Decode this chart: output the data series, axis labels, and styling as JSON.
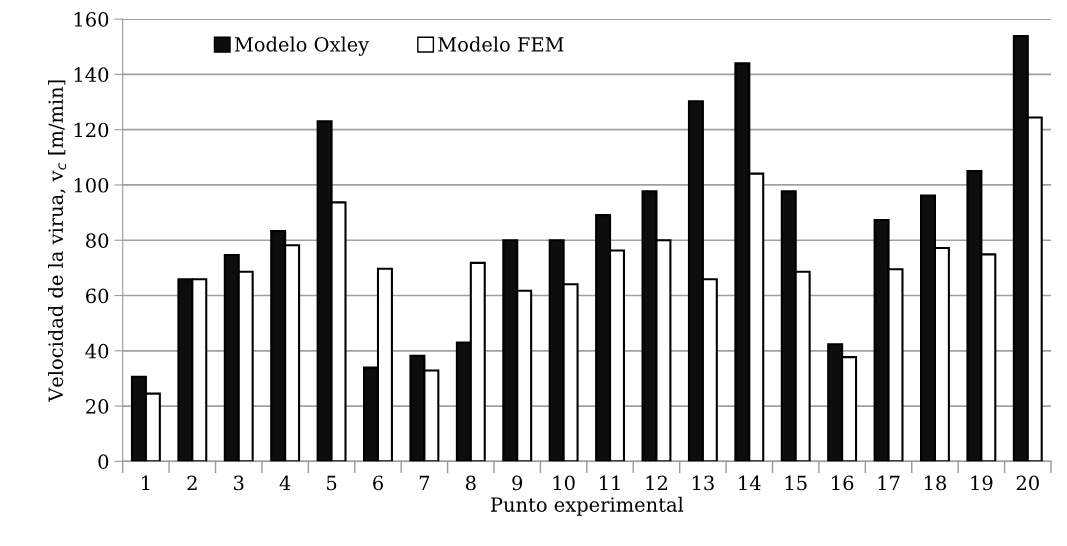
{
  "chart_data": {
    "type": "bar",
    "xlabel": "Punto experimental",
    "ylabel": "Velocidad de la virua, v$_{c}$ [m/min]",
    "categories": [
      "1",
      "2",
      "3",
      "4",
      "5",
      "6",
      "7",
      "8",
      "9",
      "10",
      "11",
      "12",
      "13",
      "14",
      "15",
      "16",
      "17",
      "18",
      "19",
      "20"
    ],
    "series": [
      {
        "name": "Modelo Oxley",
        "color": "#0d0d0d",
        "values": [
          30.6,
          65.9,
          74.6,
          83.3,
          123,
          33.9,
          38.2,
          43,
          80,
          80,
          89.1,
          97.7,
          130.3,
          144,
          97.7,
          42.4,
          87.3,
          96.2,
          105,
          153.9
        ]
      },
      {
        "name": "Modelo FEM",
        "color": "#ffffff",
        "values": [
          24.5,
          65.9,
          68.6,
          78.2,
          93.7,
          69.7,
          32.9,
          71.8,
          61.7,
          64.1,
          76.3,
          80,
          65.9,
          104.1,
          68.6,
          37.7,
          69.5,
          77.2,
          74.9,
          124.4
        ]
      }
    ],
    "ylim": [
      0,
      160
    ],
    "yticks": [
      0,
      20,
      40,
      60,
      80,
      100,
      120,
      140,
      160
    ],
    "grid": "y",
    "legend": "top left"
  }
}
